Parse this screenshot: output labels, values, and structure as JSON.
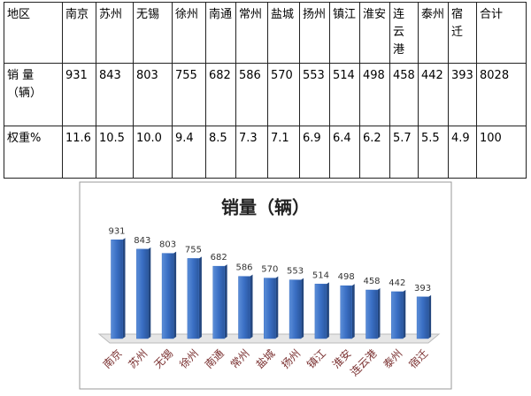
{
  "table": {
    "rows": [
      [
        "地区",
        "南京",
        "苏州",
        "无锡",
        "徐州",
        "南通",
        "常州",
        "盐城",
        "扬州",
        "镇江",
        "淮安",
        "连云港",
        "泰州",
        "宿迁",
        "合计"
      ],
      [
        "销 量（辆）",
        "931",
        "843",
        "803",
        "755",
        "682",
        "586",
        "570",
        "553",
        "514",
        "498",
        "458",
        "442",
        "393",
        "8028"
      ],
      [
        "权重%",
        "11.6",
        "10.5",
        "10.0",
        "9.4",
        "8.5",
        "7.3",
        "7.1",
        "6.9",
        "6.4",
        "6.2",
        "5.7",
        "5.5",
        "4.9",
        "100"
      ]
    ]
  },
  "chart_data": {
    "type": "bar",
    "title": "销量（辆）",
    "categories": [
      "南京",
      "苏州",
      "无锡",
      "徐州",
      "南通",
      "常州",
      "盐城",
      "扬州",
      "镇江",
      "淮安",
      "连云港",
      "泰州",
      "宿迁"
    ],
    "values": [
      931,
      843,
      803,
      755,
      682,
      586,
      570,
      553,
      514,
      498,
      458,
      442,
      393
    ],
    "color": "#3a6fc4"
  }
}
